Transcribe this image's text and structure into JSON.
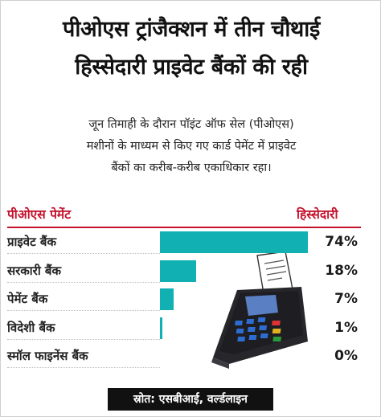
{
  "title_line1": "पीओएस ट्रांजैक्शन में तीन चौथाई",
  "title_line2": "हिस्सेदारी प्राइवेट बैंकों की रही",
  "description_lines": [
    "जून तिमाही के दौरान पॉइंट ऑफ सेल (पीओएस)",
    "मशीनों के माध्यम से किए गए कार्ड पेमेंट में प्राइवेट",
    "बैंकों का करीब-करीब एकाधिकार रहा।"
  ],
  "column_left_header": "पीओएस पेमेंट",
  "column_right_header": "हिस्सेदारी",
  "source": "स्रोत: एसबीआई, वर्ल्डलाइन",
  "colors": {
    "accent_red": "#c4112c",
    "bar": "#10b0b3",
    "source_bg": "#111111"
  },
  "icons": [
    "pos-machine-icon",
    "receipt-icon"
  ],
  "chart_data": {
    "type": "bar",
    "orientation": "horizontal",
    "categories": [
      "प्राइवेट बैंक",
      "सरकारी बैंक",
      "पेमेंट बैंक",
      "विदेशी बैंक",
      "स्मॉल फाइनेंस बैंक"
    ],
    "values": [
      74,
      18,
      7,
      1,
      0
    ],
    "value_labels": [
      "74%",
      "18%",
      "7%",
      "1%",
      "0%"
    ],
    "unit": "%",
    "xlim": [
      0,
      100
    ],
    "grid": false
  }
}
